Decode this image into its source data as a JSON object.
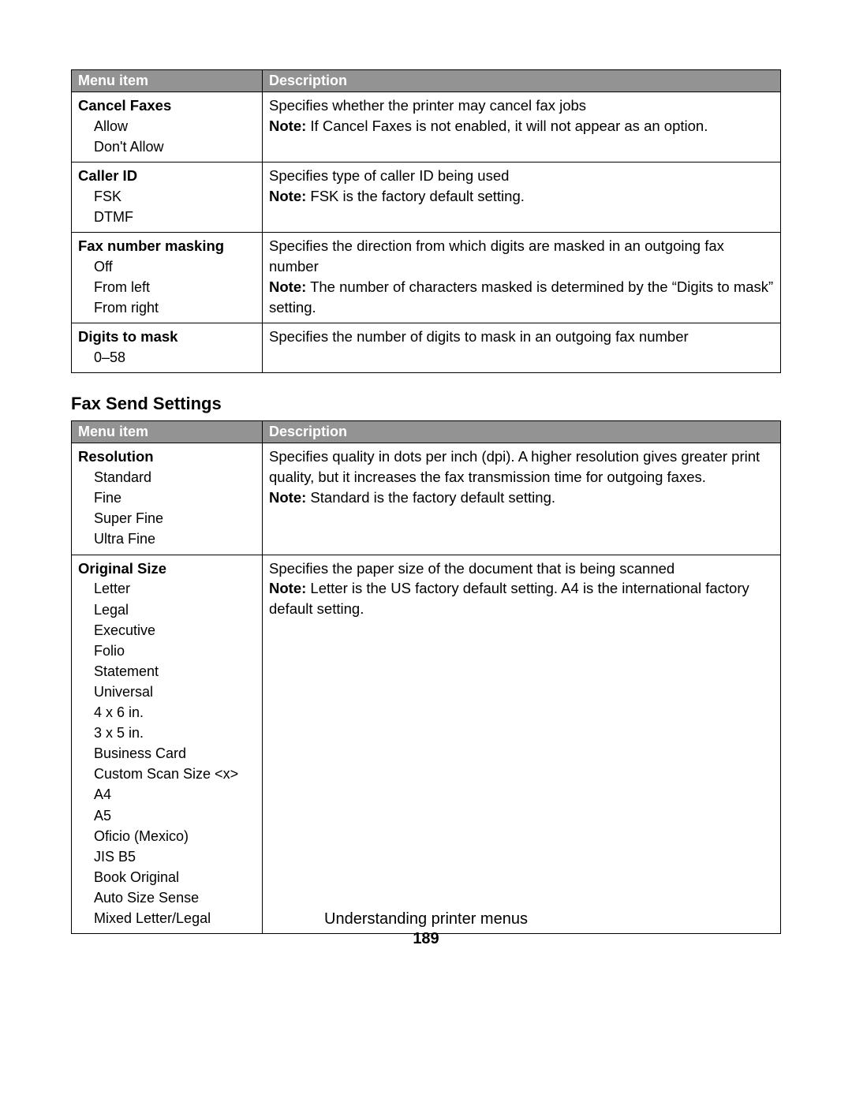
{
  "headers": {
    "menu": "Menu item",
    "desc": "Description"
  },
  "note_label": "Note:",
  "table1": {
    "rows": [
      {
        "title": "Cancel Faxes",
        "options": [
          "Allow",
          "Don't Allow"
        ],
        "desc": "Specifies whether the printer may cancel fax jobs",
        "note": "If Cancel Faxes is not enabled, it will not appear as an option."
      },
      {
        "title": "Caller ID",
        "options": [
          "FSK",
          "DTMF"
        ],
        "desc": "Specifies type of caller ID being used",
        "note": "FSK is the factory default setting."
      },
      {
        "title": "Fax number masking",
        "options": [
          "Off",
          "From left",
          "From right"
        ],
        "desc": "Specifies the direction from which digits are masked in an outgoing fax number",
        "note": "The number of characters masked is determined by the “Digits to mask” setting."
      },
      {
        "title": "Digits to mask",
        "options": [
          "0–58"
        ],
        "desc": "Specifies the number of digits to mask in an outgoing fax number",
        "note": ""
      }
    ]
  },
  "section_title": "Fax Send Settings",
  "table2": {
    "rows": [
      {
        "title": "Resolution",
        "options": [
          "Standard",
          "Fine",
          "Super Fine",
          "Ultra Fine"
        ],
        "desc": "Specifies quality in dots per inch (dpi). A higher resolution gives greater print quality, but it increases the fax transmission time for outgoing faxes.",
        "note": "Standard is the factory default setting."
      },
      {
        "title": "Original Size",
        "options": [
          "Letter",
          "Legal",
          "Executive",
          "Folio",
          "Statement",
          "Universal",
          "4 x 6 in.",
          "3 x 5 in.",
          "Business Card",
          "Custom Scan Size <x>",
          "A4",
          "A5",
          "Oficio (Mexico)",
          "JIS B5",
          "Book Original",
          "Auto Size Sense",
          "Mixed Letter/Legal"
        ],
        "desc": "Specifies the paper size of the document that is being scanned",
        "note": "Letter is the US factory default setting. A4 is the international factory default setting."
      }
    ]
  },
  "footer": {
    "title": "Understanding printer menus",
    "page": "189"
  },
  "colors": {
    "header_bg": "#939393",
    "header_fg": "#ffffff",
    "border": "#000000",
    "text": "#000000",
    "background": "#ffffff"
  }
}
